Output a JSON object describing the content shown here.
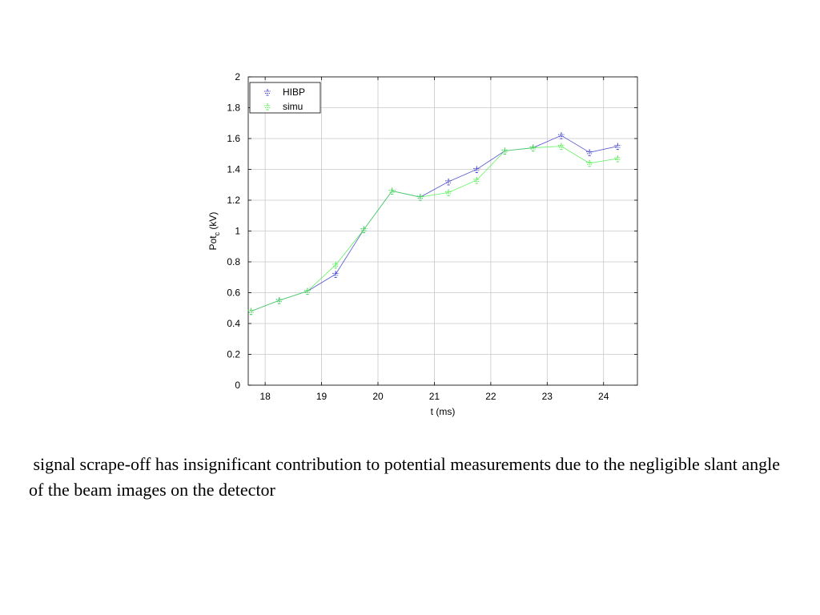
{
  "chart_data": {
    "type": "line",
    "xlabel": "t (ms)",
    "ylabel_main": "Pot",
    "ylabel_sub": "c",
    "ylabel_tail": " (kV)",
    "xlim": [
      17.7,
      24.6
    ],
    "ylim": [
      0,
      2
    ],
    "xticks": [
      18,
      19,
      20,
      21,
      22,
      23,
      24
    ],
    "yticks": [
      0,
      0.2,
      0.4,
      0.6,
      0.8,
      1,
      1.2,
      1.4,
      1.6,
      1.8,
      2
    ],
    "grid": true,
    "legend_position": "top-left",
    "x": [
      17.75,
      18.25,
      18.75,
      19.25,
      19.75,
      20.25,
      20.75,
      21.25,
      21.75,
      22.25,
      22.75,
      23.25,
      23.75,
      24.25
    ],
    "series": [
      {
        "name": "HIBP",
        "color": "#3a3acc",
        "values": [
          0.48,
          0.55,
          0.61,
          0.72,
          1.01,
          1.26,
          1.22,
          1.32,
          1.4,
          1.52,
          1.54,
          1.62,
          1.51,
          1.55
        ]
      },
      {
        "name": "simu",
        "color": "#44ee44",
        "values": [
          0.48,
          0.55,
          0.61,
          0.78,
          1.01,
          1.26,
          1.22,
          1.25,
          1.33,
          1.52,
          1.54,
          1.55,
          1.44,
          1.47
        ]
      }
    ]
  },
  "caption": " signal scrape-off has insignificant contribution to potential measurements due to the negligible slant angle of the beam images on the detector"
}
